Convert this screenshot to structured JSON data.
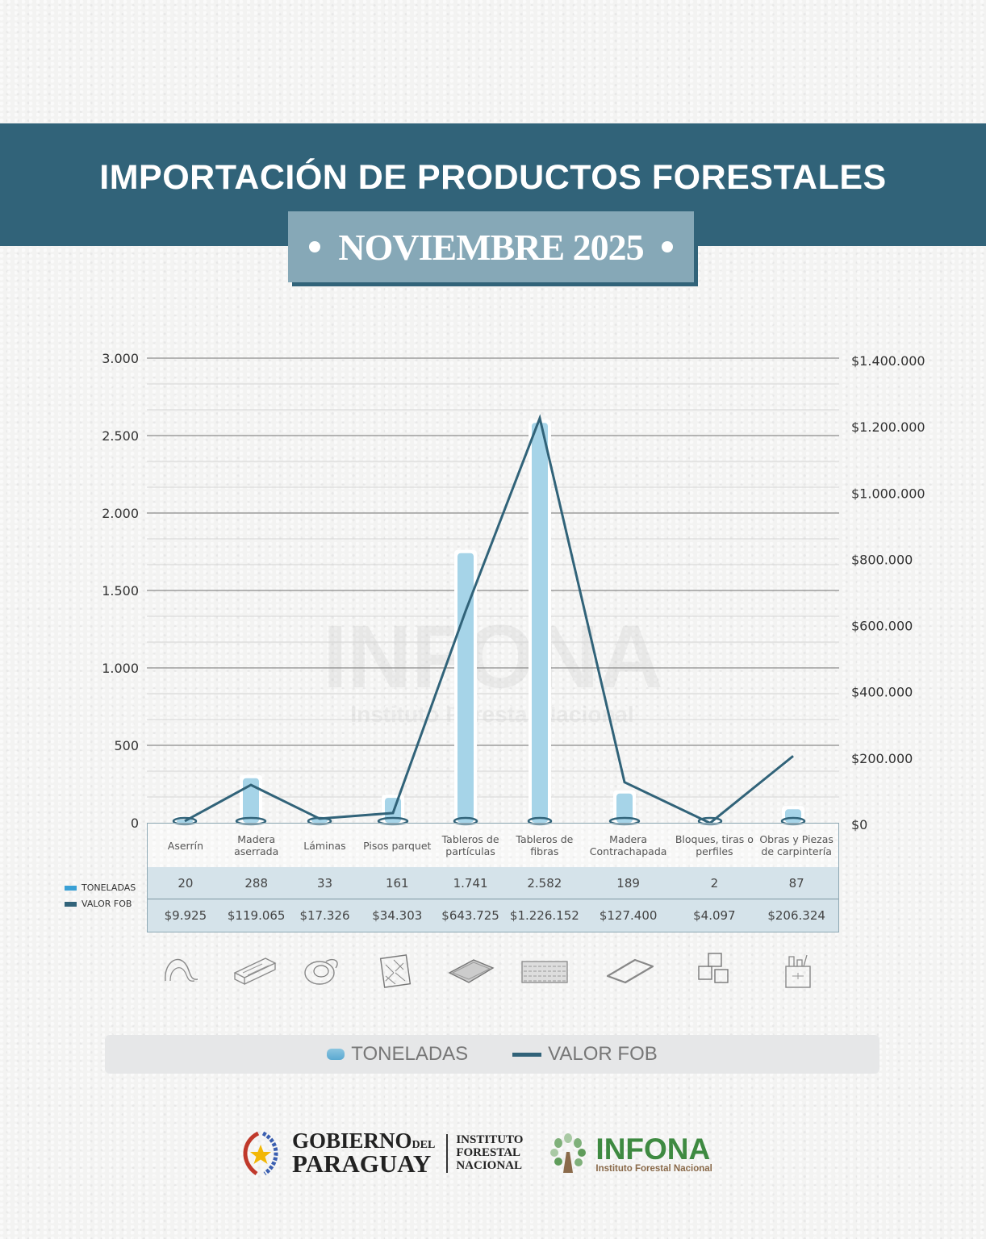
{
  "header": {
    "title": "IMPORTACIÓN DE PRODUCTOS FORESTALES",
    "subtitle": "NOVIEMBRE 2025"
  },
  "colors": {
    "banner": "#316379",
    "subtitle_box": "#86a8b7",
    "bar": "#a6d4e8",
    "line": "#316379",
    "table_fill": "#d5e3ea",
    "infona_green": "#3e8a41"
  },
  "chart_data": {
    "type": "bar",
    "title": "IMPORTACIÓN DE PRODUCTOS FORESTALES - NOVIEMBRE 2025",
    "categories": [
      "Aserrín",
      "Madera aserrada",
      "Láminas",
      "Pisos parquet",
      "Tableros de partículas",
      "Tableros de fibras",
      "Madera Contrachapada",
      "Bloques, tiras o perfiles",
      "Obras y Piezas de carpintería"
    ],
    "series": [
      {
        "name": "TONELADAS",
        "type": "bar",
        "axis": "left",
        "values": [
          20,
          288,
          33,
          161,
          1741,
          2582,
          189,
          2,
          87
        ],
        "labels": [
          "20",
          "288",
          "33",
          "161",
          "1.741",
          "2.582",
          "189",
          "2",
          "87"
        ]
      },
      {
        "name": "VALOR FOB",
        "type": "line",
        "axis": "right",
        "values": [
          9925,
          119065,
          17326,
          34303,
          643725,
          1226152,
          127400,
          4097,
          206324
        ],
        "labels": [
          "$9.925",
          "$119.065",
          "$17.326",
          "$34.303",
          "$643.725",
          "$1.226.152",
          "$127.400",
          "$4.097",
          "$206.324"
        ]
      }
    ],
    "left_axis": {
      "ylim": [
        0,
        3000
      ],
      "ticks": [
        "3.000",
        "2.500",
        "2.000",
        "1.500",
        "1.000",
        "500",
        "0"
      ]
    },
    "right_axis": {
      "ylim": [
        0,
        1400000
      ],
      "ticks": [
        "$1.400.000",
        "$1.200.000",
        "$1.000.000",
        "$800.000",
        "$600.000",
        "$400.000",
        "$200.000",
        "$0"
      ]
    },
    "grid": true,
    "legend_position": "bottom"
  },
  "table": {
    "row_labels": {
      "tons": "TONELADAS",
      "fob": "VALOR FOB"
    },
    "columns": [
      {
        "name": "Aserrín",
        "tons": "20",
        "fob": "$9.925",
        "icon": "sawdust-icon"
      },
      {
        "name": "Madera aserrada",
        "tons": "288",
        "fob": "$119.065",
        "icon": "lumber-icon"
      },
      {
        "name": "Láminas",
        "tons": "33",
        "fob": "$17.326",
        "icon": "veneer-roll-icon"
      },
      {
        "name": "Pisos parquet",
        "tons": "161",
        "fob": "$34.303",
        "icon": "parquet-icon"
      },
      {
        "name": "Tableros de partículas",
        "tons": "1.741",
        "fob": "$643.725",
        "icon": "particle-board-icon"
      },
      {
        "name": "Tableros de fibras",
        "tons": "2.582",
        "fob": "$1.226.152",
        "icon": "fiber-board-icon"
      },
      {
        "name": "Madera Contrachapada",
        "tons": "189",
        "fob": "$127.400",
        "icon": "plywood-icon"
      },
      {
        "name": "Bloques, tiras o perfiles",
        "tons": "2",
        "fob": "$4.097",
        "icon": "blocks-icon"
      },
      {
        "name": "Obras y Piezas de carpintería",
        "tons": "87",
        "fob": "$206.324",
        "icon": "carpentry-tools-icon"
      }
    ]
  },
  "legend": {
    "tons": "TONELADAS",
    "fob": "VALOR FOB"
  },
  "watermark": {
    "name": "INFONA",
    "sub": "Instituto Forestal Nacional"
  },
  "footer": {
    "gob_line1": "GOBIERNO",
    "gob_del": "DEL",
    "gob_line2": "PARAGUAY",
    "inst_line1": "INSTITUTO",
    "inst_line2": "FORESTAL",
    "inst_line3": "NACIONAL",
    "infona_name": "INFONA",
    "infona_sub": "Instituto Forestal Nacional"
  }
}
